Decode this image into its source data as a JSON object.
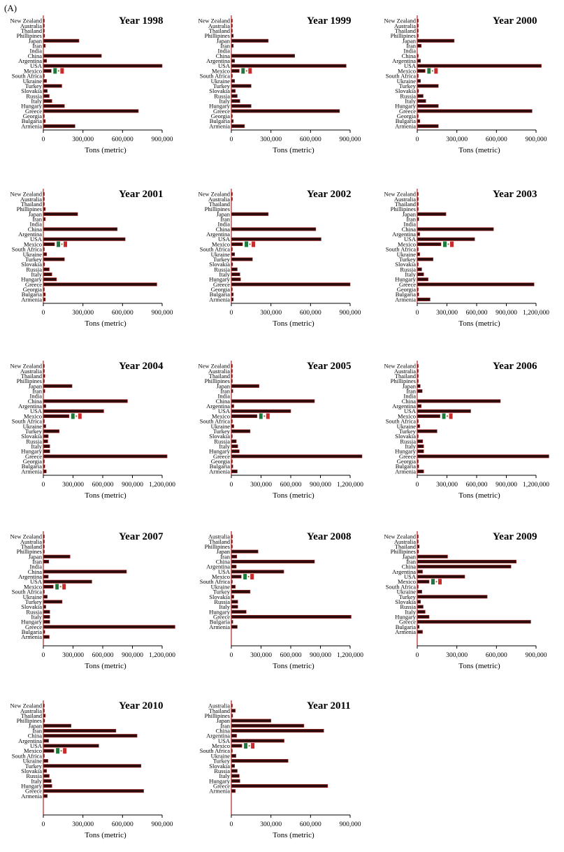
{
  "panel_label": "(A)",
  "colors": {
    "bar": "#2b0d0d",
    "bar_stroke": "#b22222",
    "axis": "#000000",
    "flag_green": "#1e7a3c",
    "flag_red": "#cc2a2a",
    "flag_white": "#ffffff"
  },
  "icon": "mexico-flag-icon",
  "chart_data": [
    {
      "type": "bar",
      "orientation": "horizontal",
      "title": "Year 1998",
      "xlabel": "Tons (metric)",
      "xlim": [
        0,
        900000
      ],
      "xticks": [
        0,
        300000,
        600000,
        900000
      ],
      "xtick_labels": [
        "0",
        "300,000",
        "600,000",
        "900,000"
      ],
      "categories": [
        "New Zealand",
        "Australia",
        "Thailand",
        "Phillipines",
        "Japan",
        "Iran",
        "India",
        "China",
        "Argentina",
        "USA",
        "Mexico",
        "South Africa",
        "Ukraine",
        "Turkey",
        "Slovakia",
        "Russia",
        "Italy",
        "Hungary",
        "Greece",
        "Georgia",
        "Bulgaria",
        "Armenia"
      ],
      "values": [
        3000,
        3000,
        4000,
        10000,
        270000,
        15000,
        0,
        440000,
        25000,
        900000,
        60000,
        3000,
        25000,
        140000,
        30000,
        45000,
        65000,
        160000,
        720000,
        5000,
        15000,
        240000
      ]
    },
    {
      "type": "bar",
      "orientation": "horizontal",
      "title": "Year 1999",
      "xlabel": "Tons (metric)",
      "xlim": [
        0,
        900000
      ],
      "xticks": [
        0,
        300000,
        600000,
        900000
      ],
      "xtick_labels": [
        "0",
        "300,000",
        "600,000",
        "900,000"
      ],
      "categories": [
        "New Zealand",
        "Australia",
        "Thailand",
        "Phillipines",
        "Japan",
        "Iran",
        "India",
        "China",
        "Argentina",
        "USA",
        "Mexico",
        "South Africa",
        "Ukraine",
        "Turkey",
        "Slovakia",
        "Russia",
        "Italy",
        "Hungary",
        "Greece",
        "Georgia",
        "Bulgaria",
        "Armenia"
      ],
      "values": [
        3000,
        3000,
        4000,
        15000,
        280000,
        15000,
        0,
        480000,
        25000,
        870000,
        60000,
        3000,
        25000,
        150000,
        30000,
        45000,
        65000,
        150000,
        820000,
        5000,
        15000,
        100000
      ]
    },
    {
      "type": "bar",
      "orientation": "horizontal",
      "title": "Year 2000",
      "xlabel": "Tons (metric)",
      "xlim": [
        0,
        900000
      ],
      "xticks": [
        0,
        300000,
        600000,
        900000
      ],
      "xtick_labels": [
        "0",
        "300,000",
        "600,000",
        "900,000"
      ],
      "categories": [
        "New Zealand",
        "Australia",
        "Thailand",
        "Phillipines",
        "Japan",
        "Iran",
        "India",
        "China",
        "Argentina",
        "USA",
        "Mexico",
        "South Africa",
        "Ukraine",
        "Turkey",
        "Slovakia",
        "Russia",
        "Italy",
        "Hungary",
        "Greece",
        "Georgia",
        "Bulgaria",
        "Armenia"
      ],
      "values": [
        3000,
        3000,
        4000,
        5000,
        280000,
        30000,
        0,
        5000,
        25000,
        940000,
        60000,
        3000,
        25000,
        160000,
        10000,
        45000,
        65000,
        160000,
        870000,
        5000,
        20000,
        160000
      ]
    },
    {
      "type": "bar",
      "orientation": "horizontal",
      "title": "Year 2001",
      "xlabel": "Tons (metric)",
      "xlim": [
        0,
        900000
      ],
      "xticks": [
        0,
        300000,
        600000,
        900000
      ],
      "xtick_labels": [
        "0",
        "300,000",
        "600,000",
        "900,000"
      ],
      "categories": [
        "New Zealand",
        "Australia",
        "Thailand",
        "Phillipines",
        "Japan",
        "Iran",
        "India",
        "China",
        "Argentina",
        "USA",
        "Mexico",
        "South Africa",
        "Ukraine",
        "Turkey",
        "Slovakia",
        "Russia",
        "Italy",
        "Hungary",
        "Greece",
        "Georgia",
        "Bulgaria",
        "Armenia"
      ],
      "values": [
        3000,
        3000,
        4000,
        15000,
        260000,
        15000,
        0,
        560000,
        0,
        620000,
        85000,
        3000,
        25000,
        160000,
        10000,
        45000,
        65000,
        100000,
        860000,
        5000,
        15000,
        15000
      ]
    },
    {
      "type": "bar",
      "orientation": "horizontal",
      "title": "Year 2002",
      "xlabel": "Tons (metric)",
      "xlim": [
        0,
        900000
      ],
      "xticks": [
        0,
        300000,
        600000,
        900000
      ],
      "xtick_labels": [
        "0",
        "300,000",
        "600,000",
        "900,000"
      ],
      "categories": [
        "New Zealand",
        "Australia",
        "Thailand",
        "Phillipines",
        "Japan",
        "Iran",
        "India",
        "China",
        "Argentina",
        "USA",
        "Mexico",
        "South Africa",
        "Ukraine",
        "Turkey",
        "Slovakia",
        "Russia",
        "Italy",
        "Hungary",
        "Greece",
        "Georgia",
        "Bulgaria",
        "Armenia"
      ],
      "values": [
        3000,
        3000,
        0,
        0,
        280000,
        0,
        0,
        640000,
        0,
        680000,
        85000,
        3000,
        25000,
        160000,
        10000,
        45000,
        65000,
        70000,
        900000,
        5000,
        15000,
        15000
      ]
    },
    {
      "type": "bar",
      "orientation": "horizontal",
      "title": "Year 2003",
      "xlabel": "Tons (metric)",
      "xlim": [
        0,
        1200000
      ],
      "xticks": [
        0,
        300000,
        600000,
        900000,
        1200000
      ],
      "xtick_labels": [
        "0",
        "300,000",
        "600,000",
        "900,000",
        "1,200,000"
      ],
      "categories": [
        "New Zealand",
        "Australia",
        "Thailand",
        "Phillipines",
        "Japan",
        "Iran",
        "India",
        "China",
        "Argentina",
        "USA",
        "Mexico",
        "South Africa",
        "Ukraine",
        "Turkey",
        "Slovakia",
        "Russia",
        "Italy",
        "Hungary",
        "Greece",
        "Georgia",
        "Bulgaria",
        "Armenia"
      ],
      "values": [
        3000,
        3000,
        4000,
        10000,
        290000,
        15000,
        0,
        770000,
        25000,
        580000,
        240000,
        3000,
        25000,
        160000,
        10000,
        45000,
        65000,
        110000,
        1180000,
        5000,
        15000,
        130000
      ]
    },
    {
      "type": "bar",
      "orientation": "horizontal",
      "title": "Year 2004",
      "xlabel": "Tons (metric)",
      "xlim": [
        0,
        1200000
      ],
      "xticks": [
        0,
        300000,
        600000,
        900000,
        1200000
      ],
      "xtick_labels": [
        "0",
        "300,000",
        "600,000",
        "900,000",
        "1,200,000"
      ],
      "categories": [
        "New Zealand",
        "Australia",
        "Thailand",
        "Phillipines",
        "Japan",
        "Iran",
        "India",
        "China",
        "Argentina",
        "USA",
        "Mexico",
        "South Africa",
        "Ukraine",
        "Turkey",
        "Slovakia",
        "Russia",
        "Italy",
        "Hungary",
        "Greece",
        "Georgia",
        "Bulgaria",
        "Armenia"
      ],
      "values": [
        3000,
        3000,
        15000,
        10000,
        290000,
        15000,
        0,
        850000,
        25000,
        610000,
        260000,
        3000,
        25000,
        160000,
        50000,
        45000,
        65000,
        65000,
        1250000,
        5000,
        15000,
        30000
      ]
    },
    {
      "type": "bar",
      "orientation": "horizontal",
      "title": "Year 2005",
      "xlabel": "Tons (metric)",
      "xlim": [
        0,
        1200000
      ],
      "xticks": [
        0,
        300000,
        600000,
        900000,
        1200000
      ],
      "xtick_labels": [
        "0",
        "300,000",
        "600,000",
        "900,000",
        "1,200,000"
      ],
      "categories": [
        "New Zealand",
        "Australia",
        "Thailand",
        "Phillipines",
        "Japan",
        "Iran",
        "India",
        "China",
        "Argentina",
        "USA",
        "Mexico",
        "South Africa",
        "Ukraine",
        "Turkey",
        "Slovakia",
        "Russia",
        "Italy",
        "Hungary",
        "Greece",
        "Georgia",
        "Bulgaria",
        "Armenia"
      ],
      "values": [
        3000,
        3000,
        4000,
        10000,
        280000,
        15000,
        0,
        840000,
        25000,
        600000,
        260000,
        3000,
        25000,
        190000,
        10000,
        50000,
        65000,
        80000,
        1320000,
        5000,
        15000,
        60000
      ]
    },
    {
      "type": "bar",
      "orientation": "horizontal",
      "title": "Year 2006",
      "xlabel": "Tons (metric)",
      "xlim": [
        0,
        1200000
      ],
      "xticks": [
        0,
        300000,
        600000,
        900000,
        1200000
      ],
      "xtick_labels": [
        "0",
        "300,000",
        "600,000",
        "900,000",
        "1,200,000"
      ],
      "categories": [
        "New Zealand",
        "Australia",
        "Thailand",
        "Phillipines",
        "Japan",
        "Iran",
        "India",
        "China",
        "Argentina",
        "USA",
        "Mexico",
        "South Africa",
        "Ukraine",
        "Turkey",
        "Slovakia",
        "Russia",
        "Italy",
        "Hungary",
        "Greece",
        "Georgia",
        "Bulgaria",
        "Armenia"
      ],
      "values": [
        3000,
        3000,
        4000,
        10000,
        30000,
        50000,
        0,
        840000,
        40000,
        540000,
        230000,
        3000,
        25000,
        200000,
        10000,
        55000,
        65000,
        65000,
        1330000,
        5000,
        15000,
        65000
      ]
    },
    {
      "type": "bar",
      "orientation": "horizontal",
      "title": "Year 2007",
      "xlabel": "Tons (metric)",
      "xlim": [
        0,
        1200000
      ],
      "xticks": [
        0,
        300000,
        600000,
        900000,
        1200000
      ],
      "xtick_labels": [
        "0",
        "300,000",
        "600,000",
        "900,000",
        "1,200,000"
      ],
      "categories": [
        "New Zealand",
        "Australia",
        "Thailand",
        "Phillipines",
        "Japan",
        "Iran",
        "India",
        "China",
        "Argentina",
        "USA",
        "Mexico",
        "South Africa",
        "Ukraine",
        "Turkey",
        "Slovakia",
        "Russia",
        "Italy",
        "Hungary",
        "Greece",
        "Bulgaria",
        "Armenia"
      ],
      "values": [
        3000,
        3000,
        4000,
        10000,
        270000,
        55000,
        0,
        840000,
        50000,
        490000,
        100000,
        3000,
        40000,
        190000,
        25000,
        65000,
        65000,
        65000,
        1330000,
        15000,
        60000
      ]
    },
    {
      "type": "bar",
      "orientation": "horizontal",
      "title": "Year 2008",
      "xlabel": "Tons (metric)",
      "xlim": [
        0,
        1200000
      ],
      "xticks": [
        0,
        300000,
        600000,
        900000,
        1200000
      ],
      "xtick_labels": [
        "0",
        "300,000",
        "600,000",
        "900,000",
        "1,200,000"
      ],
      "categories": [
        "Australia",
        "Thailand",
        "Phillipines",
        "Japan",
        "Iran",
        "China",
        "Argentina",
        "USA",
        "Mexico",
        "South Africa",
        "Ukraine",
        "Turkey",
        "Slovakia",
        "Russia",
        "Italy",
        "Hungary",
        "Greece",
        "Bulgaria",
        "Armenia"
      ],
      "values": [
        3000,
        4000,
        10000,
        270000,
        55000,
        840000,
        50000,
        530000,
        100000,
        3000,
        40000,
        190000,
        25000,
        65000,
        65000,
        150000,
        1210000,
        15000,
        60000
      ]
    },
    {
      "type": "bar",
      "orientation": "horizontal",
      "title": "Year 2009",
      "xlabel": "Tons (metric)",
      "xlim": [
        0,
        900000
      ],
      "xticks": [
        0,
        300000,
        600000,
        900000
      ],
      "xtick_labels": [
        "0",
        "300,000",
        "600,000",
        "900,000"
      ],
      "categories": [
        "New Zealand",
        "Australia",
        "Thailand",
        "Phillipines",
        "Japan",
        "Iran",
        "China",
        "Argentina",
        "USA",
        "Mexico",
        "South Africa",
        "Ukraine",
        "Turkey",
        "Slovakia",
        "Russia",
        "Italy",
        "Hungary",
        "Greece",
        "Bulgaria",
        "Armenia"
      ],
      "values": [
        3000,
        3000,
        15000,
        10000,
        230000,
        750000,
        710000,
        40000,
        360000,
        90000,
        3000,
        35000,
        530000,
        25000,
        45000,
        60000,
        90000,
        860000,
        15000,
        40000
      ]
    },
    {
      "type": "bar",
      "orientation": "horizontal",
      "title": "Year 2010",
      "xlabel": "Tons (metric)",
      "xlim": [
        0,
        900000
      ],
      "xticks": [
        0,
        300000,
        600000,
        900000
      ],
      "xtick_labels": [
        "0",
        "300,000",
        "600,000",
        "900,000"
      ],
      "categories": [
        "New Zealand",
        "Australia",
        "Thailand",
        "Phillipines",
        "Japan",
        "Iran",
        "China",
        "Argentina",
        "USA",
        "Mexico",
        "South Africa",
        "Ukraine",
        "Turkey",
        "Slovakia",
        "Russia",
        "Italy",
        "Hungary",
        "Greece",
        "Armenia"
      ],
      "values": [
        3000,
        3000,
        15000,
        10000,
        210000,
        550000,
        710000,
        40000,
        420000,
        80000,
        3000,
        35000,
        740000,
        25000,
        45000,
        60000,
        65000,
        760000,
        30000
      ]
    },
    {
      "type": "bar",
      "orientation": "horizontal",
      "title": "Year 2011",
      "xlabel": "Tons (metric)",
      "xlim": [
        0,
        900000
      ],
      "xticks": [
        0,
        300000,
        600000,
        900000
      ],
      "xtick_labels": [
        "0",
        "300,000",
        "600,000",
        "900,000"
      ],
      "categories": [
        "Australia",
        "Thailand",
        "Phillipines",
        "Japan",
        "Iran",
        "China",
        "Argentina",
        "USA",
        "Mexico",
        "South Africa",
        "Ukraine",
        "Turkey",
        "Slovakia",
        "Russia",
        "Italy",
        "Hungary",
        "Greece",
        "Armenia"
      ],
      "values": [
        3000,
        30000,
        10000,
        300000,
        550000,
        700000,
        40000,
        400000,
        80000,
        3000,
        35000,
        430000,
        25000,
        45000,
        60000,
        65000,
        730000,
        30000
      ]
    }
  ]
}
